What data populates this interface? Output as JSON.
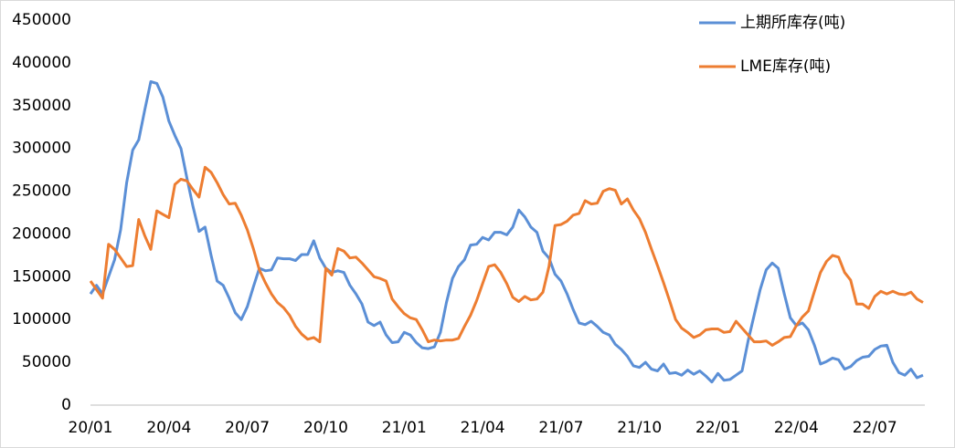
{
  "chart_data": {
    "type": "line",
    "categories": [
      "20/01",
      null,
      null,
      null,
      null,
      null,
      null,
      null,
      null,
      null,
      null,
      null,
      null,
      "20/04",
      null,
      null,
      null,
      null,
      null,
      null,
      null,
      null,
      null,
      null,
      null,
      null,
      "20/07",
      null,
      null,
      null,
      null,
      null,
      null,
      null,
      null,
      null,
      null,
      null,
      null,
      "20/10",
      null,
      null,
      null,
      null,
      null,
      null,
      null,
      null,
      null,
      null,
      null,
      null,
      "21/01",
      null,
      null,
      null,
      null,
      null,
      null,
      null,
      null,
      null,
      null,
      null,
      null,
      "21/04",
      null,
      null,
      null,
      null,
      null,
      null,
      null,
      null,
      null,
      null,
      null,
      null,
      "21/07",
      null,
      null,
      null,
      null,
      null,
      null,
      null,
      null,
      null,
      null,
      null,
      null,
      "21/10",
      null,
      null,
      null,
      null,
      null,
      null,
      null,
      null,
      null,
      null,
      null,
      null,
      "22/01",
      null,
      null,
      null,
      null,
      null,
      null,
      null,
      null,
      null,
      null,
      null,
      null,
      "22/04",
      null,
      null,
      null,
      null,
      null,
      null,
      null,
      null,
      null,
      null,
      null,
      null,
      "22/07",
      null,
      null,
      null,
      null,
      null,
      null,
      null,
      null
    ],
    "series": [
      {
        "name": "上期所库存(吨)",
        "color": "#5b8fd6",
        "values": [
          130000,
          140000,
          130000,
          150000,
          170000,
          205000,
          260000,
          298000,
          310000,
          345000,
          378000,
          376000,
          360000,
          332000,
          315000,
          300000,
          265000,
          232000,
          203000,
          208000,
          175000,
          145000,
          140000,
          125000,
          108000,
          100000,
          115000,
          138000,
          160000,
          157000,
          158000,
          172000,
          171000,
          171000,
          169000,
          176000,
          176000,
          192000,
          172000,
          160000,
          155000,
          157000,
          155000,
          140000,
          130000,
          118000,
          97000,
          93000,
          97000,
          82000,
          73000,
          74000,
          85000,
          82000,
          73000,
          67000,
          66000,
          68000,
          85000,
          120000,
          148000,
          162000,
          170000,
          187000,
          188000,
          196000,
          193000,
          202000,
          202000,
          199000,
          208000,
          228000,
          220000,
          208000,
          202000,
          180000,
          172000,
          153000,
          145000,
          130000,
          112000,
          96000,
          94000,
          98000,
          92000,
          85000,
          82000,
          71000,
          65000,
          57000,
          46000,
          44000,
          50000,
          42000,
          40000,
          48000,
          37000,
          38000,
          35000,
          41000,
          36000,
          40000,
          34000,
          27000,
          37000,
          29000,
          30000,
          35000,
          40000,
          75000,
          105000,
          135000,
          158000,
          166000,
          160000,
          130000,
          102000,
          93000,
          96000,
          88000,
          70000,
          48000,
          51000,
          55000,
          53000,
          42000,
          45000,
          52000,
          56000,
          57000,
          65000,
          69000,
          70000,
          50000,
          38000,
          35000,
          42000,
          32000,
          35000
        ]
      },
      {
        "name": "LME库存(吨)",
        "color": "#ed7d31",
        "values": [
          145000,
          135000,
          125000,
          188000,
          182000,
          172000,
          162000,
          163000,
          217000,
          198000,
          182000,
          227000,
          223000,
          219000,
          258000,
          264000,
          262000,
          252000,
          243000,
          278000,
          272000,
          260000,
          246000,
          235000,
          236000,
          222000,
          205000,
          183000,
          158000,
          143000,
          130000,
          120000,
          114000,
          105000,
          92000,
          83000,
          77000,
          79000,
          74000,
          160000,
          152000,
          183000,
          180000,
          172000,
          173000,
          166000,
          158000,
          150000,
          148000,
          145000,
          124000,
          115000,
          107000,
          102000,
          100000,
          88000,
          74000,
          76000,
          75000,
          76000,
          76000,
          78000,
          92000,
          105000,
          122000,
          142000,
          162000,
          164000,
          155000,
          142000,
          126000,
          121000,
          127000,
          123000,
          124000,
          132000,
          162000,
          210000,
          211000,
          215000,
          222000,
          224000,
          239000,
          235000,
          236000,
          250000,
          253000,
          251000,
          235000,
          241000,
          228000,
          218000,
          202000,
          182000,
          163000,
          143000,
          122000,
          100000,
          90000,
          85000,
          79000,
          82000,
          88000,
          89000,
          89000,
          85000,
          86000,
          98000,
          90000,
          82000,
          74000,
          74000,
          75000,
          70000,
          74000,
          79000,
          80000,
          93000,
          103000,
          110000,
          133000,
          155000,
          168000,
          175000,
          173000,
          155000,
          146000,
          118000,
          118000,
          113000,
          127000,
          133000,
          130000,
          133000,
          130000,
          129000,
          132000,
          124000,
          120000
        ]
      }
    ],
    "ylim": [
      0,
      450000
    ],
    "yticks": [
      0,
      50000,
      100000,
      150000,
      200000,
      250000,
      300000,
      350000,
      400000,
      450000
    ],
    "grid": false,
    "legend": "upper right"
  }
}
